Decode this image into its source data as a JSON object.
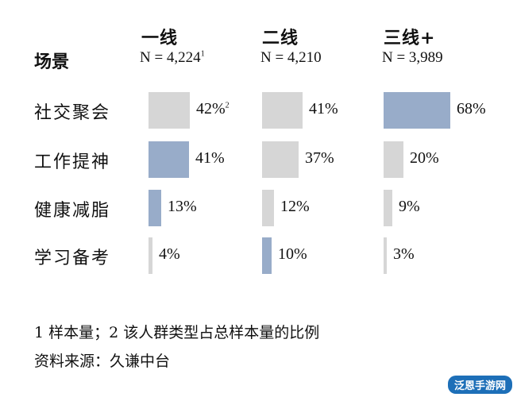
{
  "chart_data": {
    "type": "bar",
    "row_header": "场景",
    "tiers": [
      {
        "name": "一线",
        "n_label": "N = 4,224",
        "n_note": "1"
      },
      {
        "name": "二线",
        "n_label": "N = 4,210",
        "n_note": ""
      },
      {
        "name": "三线+",
        "n_label": "N = 3,989",
        "n_note": ""
      }
    ],
    "categories": [
      "社交聚会",
      "工作提神",
      "健康减脂",
      "学习备考"
    ],
    "series": [
      {
        "name": "一线",
        "values": [
          42,
          41,
          13,
          4
        ],
        "labels": [
          "42%",
          "41%",
          "13%",
          "4%"
        ],
        "notes": [
          "2",
          "",
          "",
          ""
        ],
        "highlight": [
          false,
          true,
          true,
          false
        ]
      },
      {
        "name": "二线",
        "values": [
          41,
          37,
          12,
          10
        ],
        "labels": [
          "41%",
          "37%",
          "12%",
          "10%"
        ],
        "notes": [
          "",
          "",
          "",
          ""
        ],
        "highlight": [
          false,
          false,
          false,
          true
        ]
      },
      {
        "name": "三线+",
        "values": [
          68,
          20,
          9,
          3
        ],
        "labels": [
          "68%",
          "20%",
          "9%",
          "3%"
        ],
        "notes": [
          "",
          "",
          "",
          ""
        ],
        "highlight": [
          true,
          false,
          false,
          false
        ]
      }
    ],
    "colors": {
      "highlight": "#98acc9",
      "normal": "#d6d6d6"
    }
  },
  "footnotes": {
    "line1": "1 样本量；2 该人群类型占总样本量的比例",
    "line2": "资料来源：久谦中台"
  },
  "watermark": "泛恩手游网"
}
